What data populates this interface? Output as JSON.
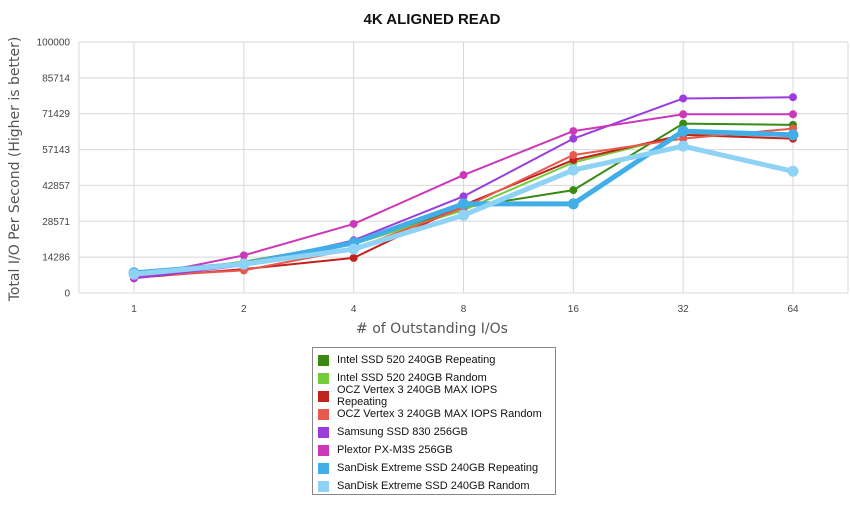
{
  "chart_data": {
    "type": "line",
    "title": "4K ALIGNED READ",
    "xlabel": "# of Outstanding I/Os",
    "ylabel": "Total I/O Per Second (Higher is better)",
    "categories": [
      "1",
      "2",
      "4",
      "8",
      "16",
      "32",
      "64"
    ],
    "yticks": [
      "0",
      "14286",
      "28571",
      "42857",
      "57143",
      "71429",
      "85714",
      "100000"
    ],
    "ylim": [
      0,
      100000
    ],
    "grid": true,
    "legend_position": "bottom-center",
    "series": [
      {
        "name": "Intel SSD 520 240GB Repeating",
        "color": "#3a8a12",
        "values": [
          6500,
          12500,
          20000,
          34000,
          41000,
          67500,
          67000
        ]
      },
      {
        "name": "Intel SSD 520 240GB Random",
        "color": "#72cc3c",
        "values": [
          7000,
          12500,
          19500,
          33000,
          52000,
          63000,
          63000
        ]
      },
      {
        "name": "OCZ Vertex 3 240GB MAX IOPS Repeating",
        "color": "#c0231c",
        "values": [
          6000,
          9500,
          14000,
          35000,
          53000,
          63000,
          61500
        ]
      },
      {
        "name": "OCZ Vertex 3 240GB MAX IOPS Random",
        "color": "#e95a4e",
        "values": [
          6500,
          9000,
          17500,
          34000,
          55000,
          61500,
          65500
        ]
      },
      {
        "name": "Samsung SSD 830 256GB",
        "color": "#9b3ddd",
        "values": [
          5800,
          11000,
          21000,
          38500,
          61500,
          77500,
          78000
        ]
      },
      {
        "name": "Plextor PX-M3S 256GB",
        "color": "#cc38b8",
        "values": [
          6200,
          15000,
          27500,
          47000,
          64500,
          71200,
          71200
        ]
      },
      {
        "name": "SanDisk Extreme SSD 240GB Repeating",
        "color": "#42aee8",
        "values": [
          8000,
          11500,
          20000,
          35500,
          35500,
          64500,
          63000
        ]
      },
      {
        "name": "SanDisk Extreme SSD 240GB Random",
        "color": "#8ed3f5",
        "values": [
          7500,
          11500,
          17500,
          31000,
          49000,
          58500,
          48500
        ]
      }
    ]
  }
}
